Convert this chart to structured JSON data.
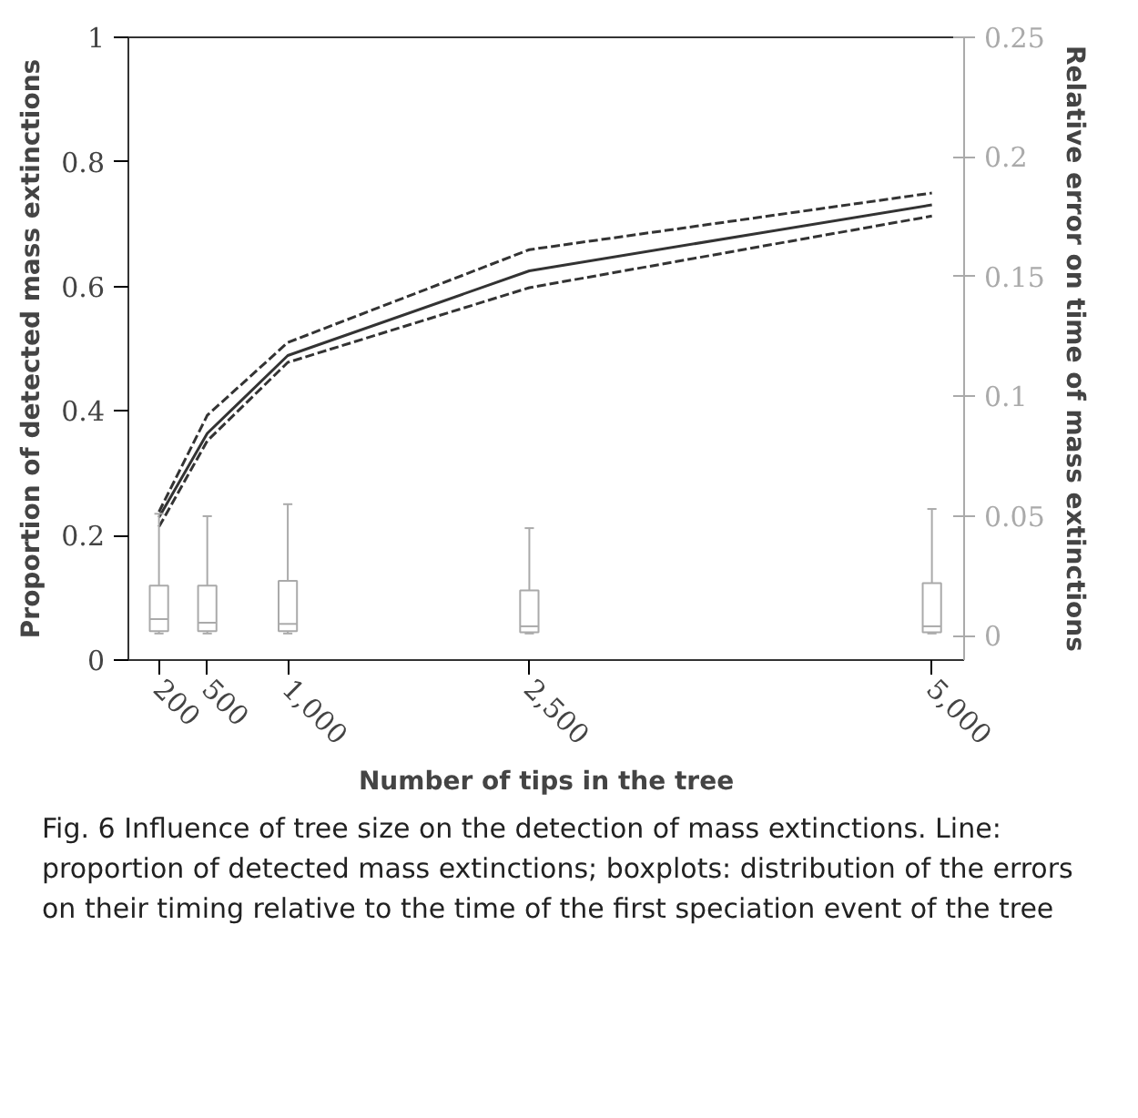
{
  "chart_data": {
    "type": "line",
    "xlabel": "Number of tips in the tree",
    "ylabel": "Proportion of detected mass extinctions",
    "y2label": "Relative error on time of mass extinctions",
    "x": [
      200,
      500,
      1000,
      2500,
      5000
    ],
    "series": [
      {
        "color": "#333333",
        "line_style": "solid",
        "values": [
          0.229,
          0.364,
          0.489,
          0.625,
          0.731
        ]
      },
      {
        "color": "#333333",
        "line_style": "dashed",
        "values": [
          0.238,
          0.393,
          0.51,
          0.659,
          0.75
        ]
      },
      {
        "color": "#333333",
        "line_style": "dashed",
        "values": [
          0.214,
          0.352,
          0.478,
          0.598,
          0.713
        ]
      },
      {
        "type": "box",
        "axis": "y2",
        "color": "#aaaaaa",
        "x": [
          200,
          500,
          1000,
          2500,
          5000
        ],
        "boxes": [
          {
            "low": 0.001,
            "q1": 0.002,
            "median": 0.007,
            "q3": 0.021,
            "high": 0.051
          },
          {
            "low": 0.001,
            "q1": 0.002,
            "median": 0.0055,
            "q3": 0.021,
            "high": 0.05
          },
          {
            "low": 0.001,
            "q1": 0.002,
            "median": 0.005,
            "q3": 0.023,
            "high": 0.055
          },
          {
            "low": 0.001,
            "q1": 0.0015,
            "median": 0.004,
            "q3": 0.019,
            "high": 0.045
          },
          {
            "low": 0.001,
            "q1": 0.0015,
            "median": 0.004,
            "q3": 0.022,
            "high": 0.053
          }
        ]
      }
    ],
    "xlim": [
      10,
      5200
    ],
    "xticks": [
      200,
      500,
      {
        "value": 1000,
        "label": "1,000"
      },
      {
        "value": 2500,
        "label": "2,500"
      },
      {
        "value": 5000,
        "label": "5,000"
      }
    ],
    "ylim": [
      0,
      1
    ],
    "yticks": [
      0,
      0.2,
      0.4,
      0.6,
      0.8,
      1
    ],
    "y2lim": [
      -0.0101,
      0.25
    ],
    "y2ticks": [
      0,
      0.05,
      0.1,
      0.15,
      0.2,
      0.25
    ],
    "annotations": [
      "Fig. 6 Influence of tree size on the detection of mass extinctions. Line: proportion of detected mass extinctions; boxplots: distribution of the errors on their timing relative to the time of the first speciation event of the tree"
    ]
  }
}
